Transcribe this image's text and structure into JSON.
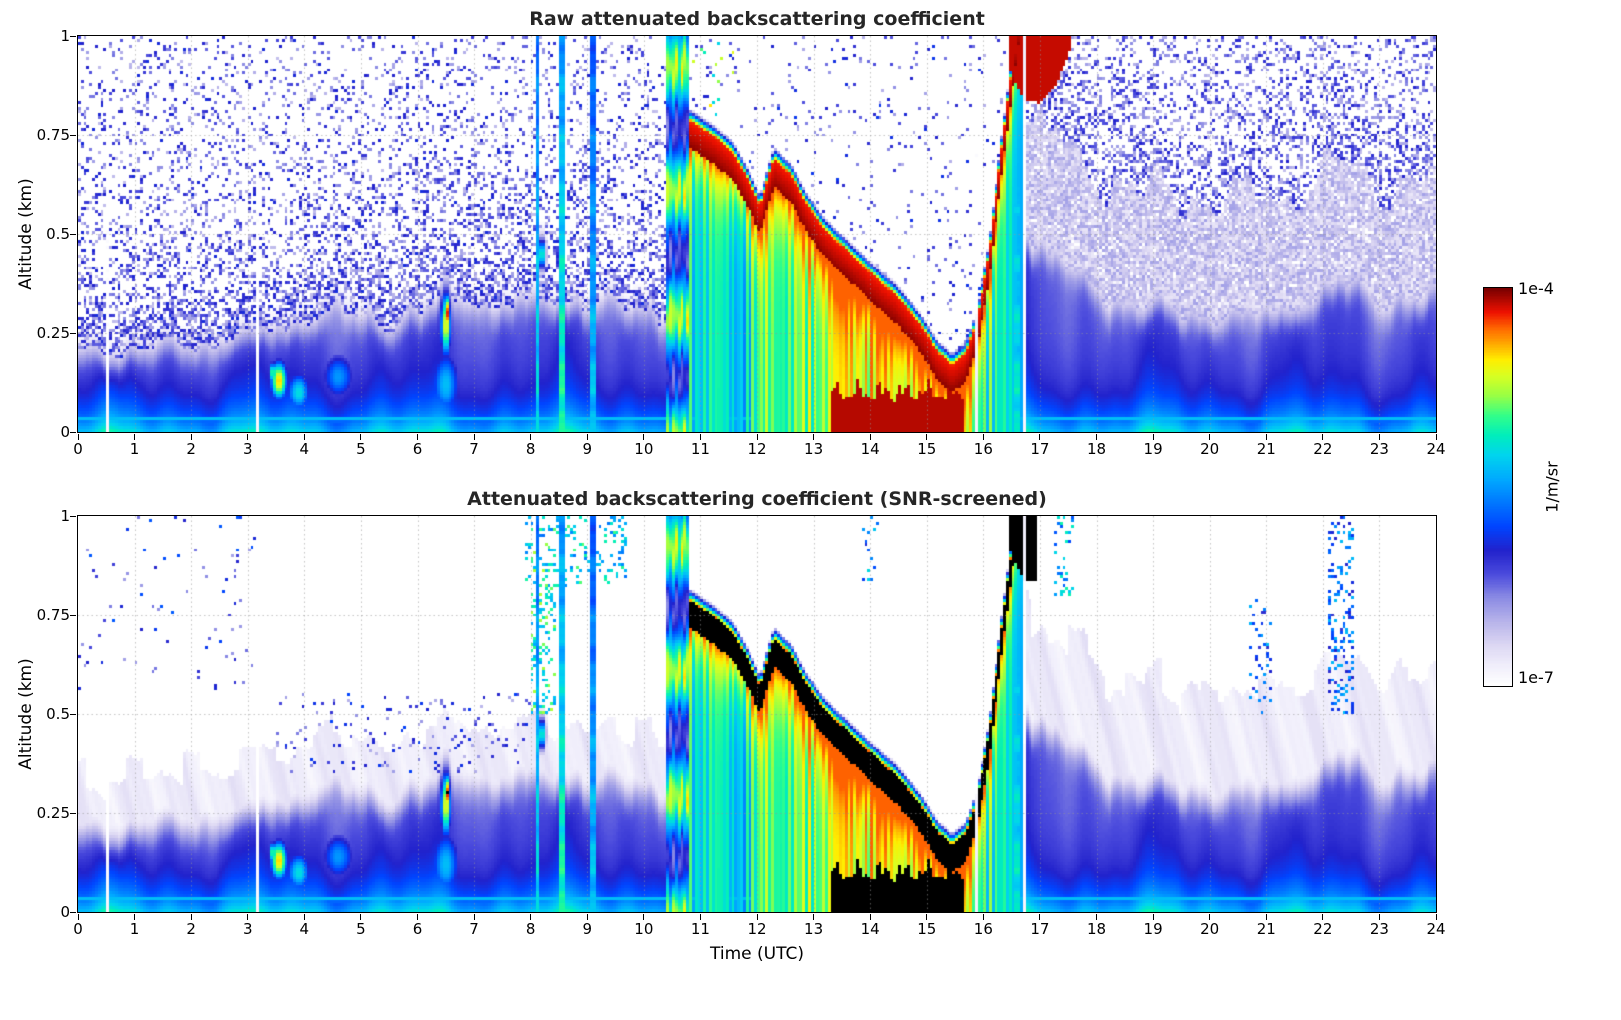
{
  "figure": {
    "bg": "#ffffff"
  },
  "panels": [
    {
      "title": "Raw attenuated backscattering coefficient",
      "ylabel": "Altitude (km)",
      "xlabel": ""
    },
    {
      "title": "Attenuated backscattering coefficient (SNR-screened)",
      "ylabel": "Altitude (km)",
      "xlabel": "Time (UTC)"
    }
  ],
  "colorbar": {
    "max_label": "1e-4",
    "min_label": "1e-7",
    "unit_label": "1/m/sr"
  },
  "chart_data": {
    "type": "heatmap",
    "x_label": "Time (UTC)",
    "y_label": "Altitude (km)",
    "x_range": [
      0,
      24
    ],
    "y_range": [
      0,
      1
    ],
    "x_ticks": [
      0,
      1,
      2,
      3,
      4,
      5,
      6,
      7,
      8,
      9,
      10,
      11,
      12,
      13,
      14,
      15,
      16,
      17,
      18,
      19,
      20,
      21,
      22,
      23,
      24
    ],
    "y_ticks": [
      0,
      0.25,
      0.5,
      0.75,
      1
    ],
    "y_tick_labels": [
      "0",
      "0.25",
      "0.5",
      "0.75",
      "1"
    ],
    "panel_titles": [
      "Raw attenuated backscattering coefficient",
      "Attenuated backscattering coefficient (SNR-screened)"
    ],
    "colorbar": {
      "scale": "log",
      "min": 1e-07,
      "max": 0.0001,
      "units": "1/m/sr"
    },
    "colormap_stops": [
      {
        "t": 0.0,
        "c": "#ffffff"
      },
      {
        "t": 0.05,
        "c": "#f0eefb"
      },
      {
        "t": 0.1,
        "c": "#ddd8f3"
      },
      {
        "t": 0.16,
        "c": "#b8b4ea"
      },
      {
        "t": 0.22,
        "c": "#8c8ce4"
      },
      {
        "t": 0.28,
        "c": "#4b4bdd"
      },
      {
        "t": 0.34,
        "c": "#2222cc"
      },
      {
        "t": 0.4,
        "c": "#0044ff"
      },
      {
        "t": 0.46,
        "c": "#0077ff"
      },
      {
        "t": 0.52,
        "c": "#00aaff"
      },
      {
        "t": 0.58,
        "c": "#00d4ee"
      },
      {
        "t": 0.63,
        "c": "#00eebb"
      },
      {
        "t": 0.68,
        "c": "#33ff88"
      },
      {
        "t": 0.73,
        "c": "#99ff44"
      },
      {
        "t": 0.78,
        "c": "#d8ff22"
      },
      {
        "t": 0.82,
        "c": "#ffee00"
      },
      {
        "t": 0.86,
        "c": "#ffaa00"
      },
      {
        "t": 0.9,
        "c": "#ff6600"
      },
      {
        "t": 0.94,
        "c": "#ee1100"
      },
      {
        "t": 1.0,
        "c": "#770000"
      }
    ],
    "model": {
      "nx": 480,
      "nz": 134,
      "seed": 1234,
      "bl_left": {
        "t": [
          0,
          0.7,
          1.5,
          2.5,
          3.2,
          3.8,
          4.5,
          5.5,
          6.2,
          6.8,
          7.5,
          8.5,
          9.5,
          10.4
        ],
        "h": [
          0.2,
          0.19,
          0.21,
          0.22,
          0.24,
          0.27,
          0.3,
          0.27,
          0.3,
          0.34,
          0.31,
          0.33,
          0.31,
          0.3
        ]
      },
      "bl_right": {
        "t": [
          16.8,
          17.2,
          17.8,
          18.5,
          19.2,
          20,
          21,
          21.8,
          22.4,
          23,
          24
        ],
        "h": [
          0.5,
          0.44,
          0.37,
          0.32,
          0.3,
          0.29,
          0.29,
          0.33,
          0.37,
          0.33,
          0.33
        ]
      },
      "event_start": 10.38,
      "event_end": 16.68,
      "rain_column_end": 10.78,
      "cloud": {
        "thick": 0.07,
        "t": [
          10.78,
          11.0,
          11.3,
          11.6,
          11.9,
          12.05,
          12.3,
          12.6,
          12.9,
          13.2,
          13.5,
          13.8,
          14.1,
          14.5,
          14.9,
          15.2,
          15.45,
          15.7,
          15.9,
          16.1,
          16.3,
          16.5,
          16.65
        ],
        "b": [
          0.72,
          0.7,
          0.67,
          0.63,
          0.55,
          0.5,
          0.62,
          0.58,
          0.5,
          0.44,
          0.4,
          0.36,
          0.32,
          0.27,
          0.2,
          0.13,
          0.1,
          0.13,
          0.22,
          0.38,
          0.62,
          0.85,
          1.0
        ]
      },
      "precip": {
        "t": [
          10.78,
          11.3,
          11.8,
          12.2,
          12.6,
          13.0,
          13.5,
          14.0,
          14.6,
          15.2,
          15.8,
          16.2,
          16.6
        ],
        "v": [
          0.6,
          0.62,
          0.58,
          0.72,
          0.66,
          0.7,
          0.78,
          0.8,
          0.78,
          0.74,
          0.7,
          0.62,
          0.55
        ]
      },
      "heavy_rain": {
        "t0": 13.3,
        "t1": 15.65,
        "z": 0.1
      },
      "top_cloud": {
        "t0": 16.45,
        "t1_raw": 17.55,
        "t1_screened": 16.95,
        "t_pts": [
          16.45,
          16.7,
          17.0,
          17.3,
          17.55
        ],
        "z_pts": [
          0.92,
          0.84,
          0.83,
          0.88,
          0.97
        ]
      },
      "stripes": [
        {
          "t": 8.12,
          "w": 0.07,
          "amp": 0.6
        },
        {
          "t": 8.55,
          "w": 0.13,
          "amp": 0.66
        },
        {
          "t": 9.08,
          "w": 0.09,
          "amp": 0.56
        },
        {
          "t": 16.6,
          "w": 0.09,
          "amp": 0.62
        }
      ],
      "gaps": [
        0.52,
        2.2,
        3.18,
        15.88,
        16.72,
        20.4,
        21.15
      ],
      "blobs": [
        {
          "t": 3.55,
          "z": 0.13,
          "st": 0.16,
          "sz": 0.055,
          "a": 0.85
        },
        {
          "t": 3.45,
          "z": 0.15,
          "st": 0.04,
          "sz": 0.03,
          "a": 0.96
        },
        {
          "t": 3.9,
          "z": 0.1,
          "st": 0.25,
          "sz": 0.06,
          "a": 0.6
        },
        {
          "t": 4.6,
          "z": 0.14,
          "st": 0.35,
          "sz": 0.07,
          "a": 0.5
        },
        {
          "t": 6.5,
          "z": 0.27,
          "st": 0.1,
          "sz": 0.09,
          "a": 0.82
        },
        {
          "t": 6.52,
          "z": 0.3,
          "st": 0.03,
          "sz": 0.05,
          "a": 0.96
        },
        {
          "t": 6.5,
          "z": 0.12,
          "st": 0.3,
          "sz": 0.1,
          "a": 0.55
        },
        {
          "t": 8.2,
          "z": 0.45,
          "st": 0.06,
          "sz": 0.04,
          "a": 0.72
        }
      ],
      "surface_line": {
        "z": 0.032,
        "w": 0.012,
        "amp": 0.56
      },
      "noise2_patches": [
        {
          "t0": 7.9,
          "t1": 9.7,
          "z0": 0.82,
          "z1": 1.0,
          "p": 0.18,
          "v": 0.45
        },
        {
          "t0": 8.0,
          "t1": 8.45,
          "z0": 0.5,
          "z1": 0.95,
          "p": 0.25,
          "v": 0.5
        },
        {
          "t0": 22.1,
          "t1": 22.55,
          "z0": 0.5,
          "z1": 1.0,
          "p": 0.22,
          "v": 0.3
        },
        {
          "t0": 20.7,
          "t1": 21.1,
          "z0": 0.5,
          "z1": 0.8,
          "p": 0.1,
          "v": 0.3
        },
        {
          "t0": 13.85,
          "t1": 14.15,
          "z0": 0.8,
          "z1": 1.0,
          "p": 0.12,
          "v": 0.35
        },
        {
          "t0": 17.25,
          "t1": 17.6,
          "z0": 0.78,
          "z1": 1.0,
          "p": 0.2,
          "v": 0.4
        },
        {
          "t0": 0.0,
          "t1": 3.2,
          "z0": 0.55,
          "z1": 1.0,
          "p": 0.02,
          "v": 0.18
        },
        {
          "t0": 3.5,
          "t1": 8.0,
          "z0": 0.35,
          "z1": 0.55,
          "p": 0.06,
          "v": 0.15
        }
      ]
    }
  }
}
